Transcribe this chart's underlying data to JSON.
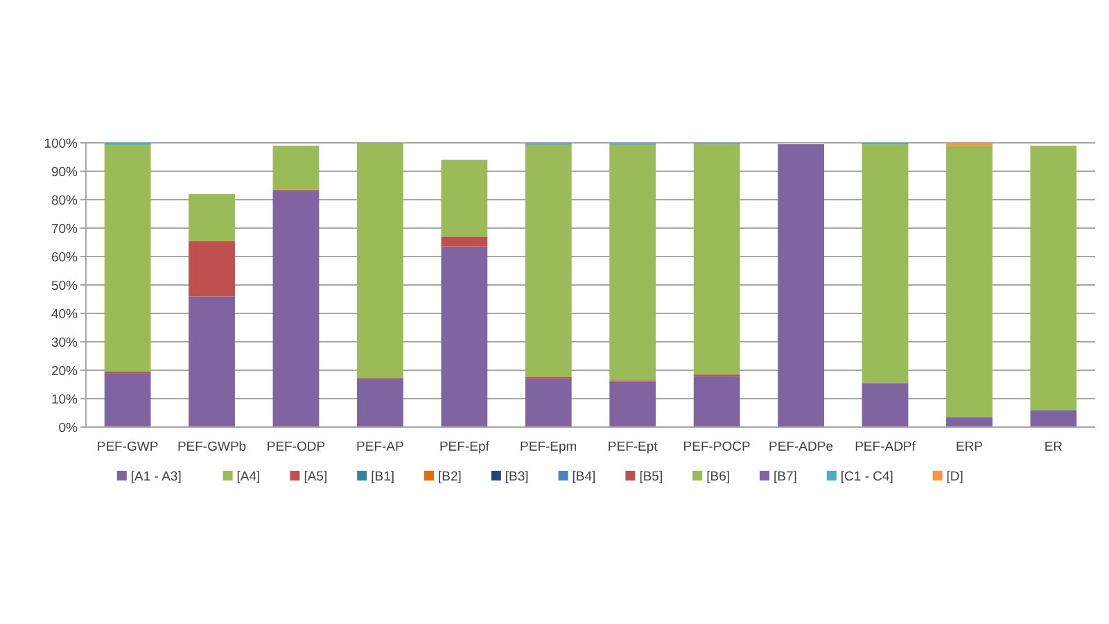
{
  "chart_data": {
    "type": "bar",
    "stacked": true,
    "categories": [
      "PEF-GWP",
      "PEF-GWPb",
      "PEF-ODP",
      "PEF-AP",
      "PEF-Epf",
      "PEF-Epm",
      "PEF-Ept",
      "PEF-POCP",
      "PEF-ADPe",
      "PEF-ADPf",
      "ERP",
      "ER"
    ],
    "series": [
      {
        "name": "[A1 - A3]",
        "color": "#8064a2",
        "values": [
          19,
          46,
          83,
          17,
          63.5,
          17,
          16,
          18,
          99.5,
          15.5,
          3.5,
          6
        ]
      },
      {
        "name": "[A4]",
        "color": "#9bbb59",
        "values": [
          null,
          null,
          null,
          null,
          null,
          null,
          null,
          null,
          null,
          null,
          null,
          null
        ]
      },
      {
        "name": "[A5]",
        "color": "#c0504d",
        "values": [
          0.5,
          19.5,
          0.5,
          0.3,
          3.5,
          0.7,
          0.5,
          0.5,
          null,
          null,
          null,
          null
        ]
      },
      {
        "name": "[B1]",
        "color": "#31849b",
        "values": [
          null,
          null,
          null,
          null,
          null,
          null,
          null,
          null,
          null,
          null,
          null,
          null
        ]
      },
      {
        "name": "[B2]",
        "color": "#e46c0a",
        "values": [
          null,
          null,
          null,
          null,
          null,
          null,
          null,
          null,
          null,
          null,
          null,
          null
        ]
      },
      {
        "name": "[B3]",
        "color": "#1f497d",
        "values": [
          null,
          null,
          null,
          null,
          null,
          null,
          null,
          null,
          null,
          null,
          null,
          null
        ]
      },
      {
        "name": "[B4]",
        "color": "#4f81bd",
        "values": [
          null,
          null,
          null,
          null,
          null,
          null,
          null,
          null,
          null,
          null,
          null,
          null
        ]
      },
      {
        "name": "[B5]",
        "color": "#c0504d",
        "values": [
          null,
          null,
          null,
          null,
          null,
          null,
          null,
          null,
          null,
          null,
          null,
          null
        ]
      },
      {
        "name": "[B6]",
        "color": "#9bbb59",
        "values": [
          79.8,
          16.5,
          15.5,
          82.5,
          27,
          81.6,
          82.8,
          81,
          null,
          84,
          95.5,
          93
        ]
      },
      {
        "name": "[B7]",
        "color": "#8064a2",
        "values": [
          null,
          null,
          null,
          null,
          null,
          null,
          null,
          null,
          null,
          null,
          null,
          null
        ]
      },
      {
        "name": "[C1 - C4]",
        "color": "#4bacc6",
        "values": [
          0.7,
          null,
          null,
          null,
          null,
          0.5,
          0.5,
          0.3,
          null,
          0.5,
          null,
          null
        ]
      },
      {
        "name": "[D]",
        "color": "#f79646",
        "values": [
          null,
          null,
          null,
          null,
          null,
          null,
          null,
          null,
          null,
          null,
          1,
          null
        ]
      }
    ],
    "ylim": [
      0,
      100
    ],
    "yticks": [
      {
        "value": 0,
        "label": "0%"
      },
      {
        "value": 10,
        "label": "10%"
      },
      {
        "value": 20,
        "label": "20%"
      },
      {
        "value": 30,
        "label": "30%"
      },
      {
        "value": 40,
        "label": "40%"
      },
      {
        "value": 50,
        "label": "50%"
      },
      {
        "value": 60,
        "label": "60%"
      },
      {
        "value": 70,
        "label": "70%"
      },
      {
        "value": 80,
        "label": "80%"
      },
      {
        "value": 90,
        "label": "90%"
      },
      {
        "value": 100,
        "label": "100%"
      }
    ],
    "grid": "y",
    "legend": "bottom"
  }
}
